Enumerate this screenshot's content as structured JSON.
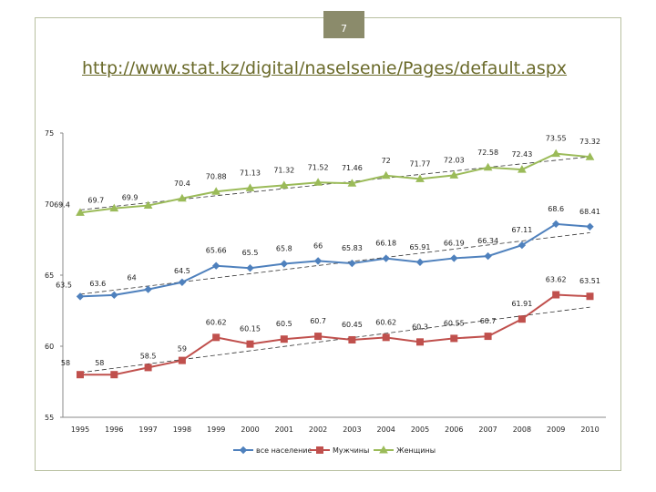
{
  "slide": {
    "page_number": "7",
    "link": "http://www.stat.kz/digital/naselsenie/Pages/default.aspx"
  },
  "chart_data": {
    "type": "line",
    "title": "",
    "xlabel": "",
    "ylabel": "",
    "ylim": [
      55,
      75
    ],
    "yticks": [
      55,
      60,
      65,
      70,
      75
    ],
    "categories": [
      "1995",
      "1996",
      "1997",
      "1998",
      "1999",
      "2000",
      "2001",
      "2002",
      "2003",
      "2004",
      "2005",
      "2006",
      "2007",
      "2008",
      "2009",
      "2010"
    ],
    "series": [
      {
        "name": "все население",
        "color": "#4f81bd",
        "marker": "diamond",
        "values": [
          63.5,
          63.6,
          64,
          64.5,
          65.66,
          65.5,
          65.8,
          66,
          65.83,
          66.18,
          65.91,
          66.19,
          66.34,
          67.11,
          68.6,
          68.41
        ],
        "labels": [
          "63.5",
          "63.6",
          "64",
          "64.5",
          "65.66",
          "65.5",
          "65.8",
          "66",
          "65.83",
          "66.18",
          "65.91",
          "66.19",
          "66.34",
          "67.11",
          "68.6",
          "68.41"
        ]
      },
      {
        "name": "Мужчины",
        "color": "#c0504d",
        "marker": "square",
        "values": [
          58,
          58,
          58.5,
          59,
          60.62,
          60.15,
          60.5,
          60.7,
          60.45,
          60.62,
          60.3,
          60.55,
          60.7,
          61.91,
          63.62,
          63.51
        ],
        "labels": [
          "58",
          "58",
          "58.5",
          "59",
          "60.62",
          "60.15",
          "60.5",
          "60.7",
          "60.45",
          "60.62",
          "60.3",
          "60.55",
          "60.7",
          "61.91",
          "63.62",
          "63.51"
        ]
      },
      {
        "name": "Женщины",
        "color": "#9bbb59",
        "marker": "triangle",
        "values": [
          69.4,
          69.7,
          69.9,
          70.4,
          70.88,
          71.13,
          71.32,
          71.52,
          71.46,
          72,
          71.77,
          72.03,
          72.58,
          72.43,
          73.55,
          73.32
        ],
        "labels": [
          "69.4",
          "69.7",
          "69.9",
          "70.4",
          "70.88",
          "71.13",
          "71.32",
          "71.52",
          "71.46",
          "72",
          "71.77",
          "72.03",
          "72.58",
          "72.43",
          "73.55",
          "73.32"
        ]
      }
    ],
    "trendlines": "linear",
    "legend": "bottom"
  }
}
